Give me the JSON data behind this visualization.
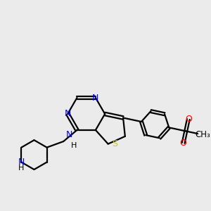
{
  "bg_color": "#ebebeb",
  "bond_color": "#000000",
  "N_color": "#0000ff",
  "S_color": "#cccc00",
  "O_color": "#ff0000",
  "lw": 1.6,
  "figsize": [
    3.0,
    3.0
  ],
  "dpi": 100,
  "xlim": [
    0,
    10
  ],
  "ylim": [
    0,
    10
  ]
}
